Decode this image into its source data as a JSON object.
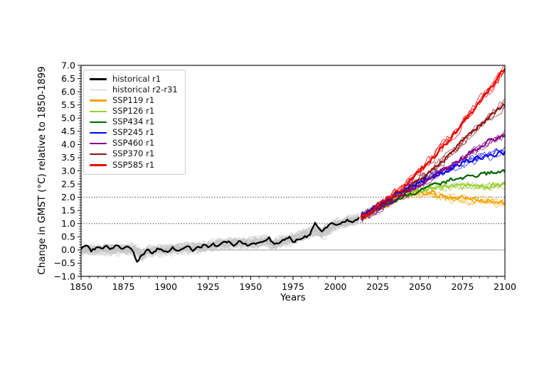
{
  "chart_data": {
    "type": "line",
    "title": "",
    "xlabel": "Years",
    "ylabel": "Change in GMST (°C) relative to 1850-1899",
    "xlim": [
      1850,
      2100
    ],
    "ylim": [
      -1.0,
      7.0
    ],
    "xticks": [
      1850,
      1875,
      1900,
      1925,
      1950,
      1975,
      2000,
      2025,
      2050,
      2075,
      2100
    ],
    "yticks": [
      7.0,
      6.5,
      6.0,
      5.5,
      5.0,
      4.5,
      4.0,
      3.5,
      3.0,
      2.5,
      2.0,
      1.5,
      1.0,
      0.5,
      0.0,
      -0.5,
      -1.0
    ],
    "x_minor_step": 5,
    "y_minor_step": 0.1,
    "grid": "off",
    "reference_lines": [
      {
        "y": 0.0,
        "style": "solid",
        "color": "#9a9a9a"
      },
      {
        "y": 1.0,
        "style": "dotted",
        "color": "#3a3a3a"
      },
      {
        "y": 2.0,
        "style": "dotted",
        "color": "#3a3a3a"
      }
    ],
    "legend": {
      "position": "upper left",
      "items": [
        {
          "label": "historical r1",
          "color": "#000000",
          "lw": 3
        },
        {
          "label": "historical r2-r31",
          "color": "#c9c9c9",
          "lw": 1
        },
        {
          "label": "SSP119 r1",
          "color": "#f5a300",
          "lw": 2.5
        },
        {
          "label": "SSP126 r1",
          "color": "#9acd32",
          "lw": 2.5
        },
        {
          "label": "SSP434 r1",
          "color": "#006400",
          "lw": 2.5
        },
        {
          "label": "SSP245 r1",
          "color": "#0000ee",
          "lw": 2.5
        },
        {
          "label": "SSP460 r1",
          "color": "#800080",
          "lw": 2.5
        },
        {
          "label": "SSP370 r1",
          "color": "#8b1212",
          "lw": 2.5
        },
        {
          "label": "SSP585 r1",
          "color": "#ee0000",
          "lw": 2.5
        }
      ]
    },
    "series": [
      {
        "name": "historical r2-r31",
        "slug": "historical-ensemble",
        "color": "#c4c4c4",
        "width": 0.7,
        "members": 30,
        "member_noise": 0.13,
        "member_spread": 0.24,
        "main": false,
        "noise": 0,
        "anchors": [
          [
            1850,
            0.0
          ],
          [
            1880,
            0.02
          ],
          [
            1883,
            -0.05
          ],
          [
            1886,
            -0.22
          ],
          [
            1890,
            -0.05
          ],
          [
            1900,
            0.0
          ],
          [
            1910,
            0.05
          ],
          [
            1920,
            0.1
          ],
          [
            1930,
            0.2
          ],
          [
            1940,
            0.28
          ],
          [
            1950,
            0.25
          ],
          [
            1960,
            0.33
          ],
          [
            1963,
            0.2
          ],
          [
            1970,
            0.35
          ],
          [
            1980,
            0.5
          ],
          [
            1988,
            0.75
          ],
          [
            1992,
            0.62
          ],
          [
            2000,
            0.95
          ],
          [
            2007,
            1.05
          ],
          [
            2014,
            1.2
          ]
        ]
      },
      {
        "name": "historical r1",
        "slug": "historical-r1",
        "color": "#000000",
        "width": 2.3,
        "members": 0,
        "member_noise": 0,
        "member_spread": 0,
        "main": true,
        "noise": 0.05,
        "anchors": [
          [
            1850,
            0.05
          ],
          [
            1853,
            0.18
          ],
          [
            1856,
            -0.05
          ],
          [
            1859,
            0.1
          ],
          [
            1862,
            0.0
          ],
          [
            1865,
            0.12
          ],
          [
            1868,
            0.02
          ],
          [
            1871,
            0.15
          ],
          [
            1874,
            0.05
          ],
          [
            1877,
            0.12
          ],
          [
            1880,
            0.0
          ],
          [
            1883,
            -0.42
          ],
          [
            1886,
            -0.18
          ],
          [
            1889,
            -0.02
          ],
          [
            1892,
            -0.12
          ],
          [
            1895,
            0.05
          ],
          [
            1898,
            0.02
          ],
          [
            1901,
            -0.05
          ],
          [
            1904,
            0.08
          ],
          [
            1907,
            -0.02
          ],
          [
            1910,
            0.05
          ],
          [
            1913,
            0.12
          ],
          [
            1916,
            0.0
          ],
          [
            1919,
            0.1
          ],
          [
            1922,
            0.18
          ],
          [
            1925,
            0.1
          ],
          [
            1928,
            0.22
          ],
          [
            1931,
            0.12
          ],
          [
            1934,
            0.25
          ],
          [
            1937,
            0.3
          ],
          [
            1940,
            0.2
          ],
          [
            1943,
            0.3
          ],
          [
            1946,
            0.22
          ],
          [
            1949,
            0.18
          ],
          [
            1952,
            0.3
          ],
          [
            1955,
            0.25
          ],
          [
            1958,
            0.38
          ],
          [
            1961,
            0.45
          ],
          [
            1964,
            0.18
          ],
          [
            1967,
            0.3
          ],
          [
            1970,
            0.38
          ],
          [
            1973,
            0.45
          ],
          [
            1976,
            0.3
          ],
          [
            1979,
            0.45
          ],
          [
            1982,
            0.5
          ],
          [
            1985,
            0.55
          ],
          [
            1988,
            1.05
          ],
          [
            1990,
            0.9
          ],
          [
            1992,
            0.7
          ],
          [
            1995,
            0.85
          ],
          [
            1998,
            1.0
          ],
          [
            2001,
            0.95
          ],
          [
            2004,
            1.05
          ],
          [
            2007,
            1.15
          ],
          [
            2010,
            1.05
          ],
          [
            2014,
            1.25
          ]
        ]
      },
      {
        "name": "SSP119 r1",
        "slug": "ssp119",
        "color": "#f5a300",
        "width": 2.0,
        "members": 4,
        "member_noise": 0.12,
        "member_spread": 0.18,
        "main": true,
        "noise": 0.09,
        "anchors": [
          [
            2015,
            1.25
          ],
          [
            2020,
            1.4
          ],
          [
            2025,
            1.6
          ],
          [
            2030,
            1.8
          ],
          [
            2035,
            1.95
          ],
          [
            2040,
            2.05
          ],
          [
            2045,
            2.15
          ],
          [
            2050,
            2.2
          ],
          [
            2055,
            2.15
          ],
          [
            2060,
            2.1
          ],
          [
            2065,
            2.05
          ],
          [
            2070,
            2.0
          ],
          [
            2075,
            1.95
          ],
          [
            2080,
            1.9
          ],
          [
            2085,
            1.9
          ],
          [
            2090,
            1.9
          ],
          [
            2095,
            1.85
          ],
          [
            2100,
            1.85
          ]
        ]
      },
      {
        "name": "SSP126 r1",
        "slug": "ssp126",
        "color": "#9acd32",
        "width": 2.0,
        "members": 4,
        "member_noise": 0.12,
        "member_spread": 0.16,
        "main": true,
        "noise": 0.09,
        "anchors": [
          [
            2015,
            1.25
          ],
          [
            2020,
            1.45
          ],
          [
            2025,
            1.6
          ],
          [
            2030,
            1.8
          ],
          [
            2035,
            2.0
          ],
          [
            2040,
            2.1
          ],
          [
            2045,
            2.2
          ],
          [
            2050,
            2.3
          ],
          [
            2055,
            2.35
          ],
          [
            2060,
            2.4
          ],
          [
            2065,
            2.4
          ],
          [
            2070,
            2.45
          ],
          [
            2075,
            2.4
          ],
          [
            2080,
            2.45
          ],
          [
            2085,
            2.4
          ],
          [
            2090,
            2.45
          ],
          [
            2095,
            2.45
          ],
          [
            2100,
            2.5
          ]
        ]
      },
      {
        "name": "SSP434 r1",
        "slug": "ssp434",
        "color": "#006400",
        "width": 2.2,
        "members": 0,
        "member_noise": 0,
        "member_spread": 0,
        "main": true,
        "noise": 0.08,
        "anchors": [
          [
            2015,
            1.25
          ],
          [
            2020,
            1.4
          ],
          [
            2025,
            1.55
          ],
          [
            2030,
            1.7
          ],
          [
            2035,
            1.9
          ],
          [
            2040,
            2.05
          ],
          [
            2045,
            2.15
          ],
          [
            2050,
            2.3
          ],
          [
            2055,
            2.4
          ],
          [
            2060,
            2.5
          ],
          [
            2065,
            2.6
          ],
          [
            2070,
            2.7
          ],
          [
            2075,
            2.75
          ],
          [
            2080,
            2.8
          ],
          [
            2085,
            2.85
          ],
          [
            2090,
            2.9
          ],
          [
            2095,
            2.95
          ],
          [
            2100,
            3.0
          ]
        ]
      },
      {
        "name": "SSP245 r1",
        "slug": "ssp245",
        "color": "#0000ee",
        "width": 2.0,
        "members": 4,
        "member_noise": 0.12,
        "member_spread": 0.2,
        "main": true,
        "noise": 0.09,
        "anchors": [
          [
            2015,
            1.25
          ],
          [
            2020,
            1.45
          ],
          [
            2025,
            1.65
          ],
          [
            2030,
            1.85
          ],
          [
            2035,
            2.05
          ],
          [
            2040,
            2.25
          ],
          [
            2045,
            2.45
          ],
          [
            2050,
            2.6
          ],
          [
            2055,
            2.75
          ],
          [
            2060,
            2.9
          ],
          [
            2065,
            3.0
          ],
          [
            2070,
            3.15
          ],
          [
            2075,
            3.3
          ],
          [
            2080,
            3.4
          ],
          [
            2085,
            3.5
          ],
          [
            2090,
            3.6
          ],
          [
            2095,
            3.65
          ],
          [
            2100,
            3.7
          ]
        ]
      },
      {
        "name": "SSP460 r1",
        "slug": "ssp460",
        "color": "#800080",
        "width": 2.0,
        "members": 4,
        "member_noise": 0.12,
        "member_spread": 0.18,
        "main": true,
        "noise": 0.09,
        "anchors": [
          [
            2015,
            1.25
          ],
          [
            2020,
            1.4
          ],
          [
            2025,
            1.55
          ],
          [
            2030,
            1.75
          ],
          [
            2035,
            1.95
          ],
          [
            2040,
            2.1
          ],
          [
            2045,
            2.3
          ],
          [
            2050,
            2.5
          ],
          [
            2055,
            2.7
          ],
          [
            2060,
            2.9
          ],
          [
            2065,
            3.1
          ],
          [
            2070,
            3.3
          ],
          [
            2075,
            3.5
          ],
          [
            2080,
            3.7
          ],
          [
            2085,
            3.9
          ],
          [
            2090,
            4.1
          ],
          [
            2095,
            4.25
          ],
          [
            2100,
            4.4
          ]
        ]
      },
      {
        "name": "SSP370 r1",
        "slug": "ssp370",
        "color": "#8b1212",
        "width": 2.0,
        "members": 4,
        "member_noise": 0.13,
        "member_spread": 0.22,
        "main": true,
        "noise": 0.09,
        "anchors": [
          [
            2015,
            1.25
          ],
          [
            2020,
            1.4
          ],
          [
            2025,
            1.6
          ],
          [
            2030,
            1.8
          ],
          [
            2035,
            2.0
          ],
          [
            2040,
            2.2
          ],
          [
            2045,
            2.45
          ],
          [
            2050,
            2.7
          ],
          [
            2055,
            2.95
          ],
          [
            2060,
            3.2
          ],
          [
            2065,
            3.5
          ],
          [
            2070,
            3.8
          ],
          [
            2075,
            4.1
          ],
          [
            2080,
            4.4
          ],
          [
            2085,
            4.7
          ],
          [
            2090,
            5.0
          ],
          [
            2095,
            5.3
          ],
          [
            2100,
            5.55
          ]
        ]
      },
      {
        "name": "SSP585 r1",
        "slug": "ssp585",
        "color": "#ee0000",
        "width": 2.2,
        "members": 4,
        "member_noise": 0.13,
        "member_spread": 0.2,
        "main": true,
        "noise": 0.09,
        "anchors": [
          [
            2015,
            1.25
          ],
          [
            2020,
            1.45
          ],
          [
            2025,
            1.65
          ],
          [
            2030,
            1.9
          ],
          [
            2035,
            2.15
          ],
          [
            2040,
            2.4
          ],
          [
            2045,
            2.7
          ],
          [
            2050,
            3.0
          ],
          [
            2055,
            3.35
          ],
          [
            2060,
            3.7
          ],
          [
            2065,
            4.05
          ],
          [
            2070,
            4.4
          ],
          [
            2075,
            4.8
          ],
          [
            2080,
            5.2
          ],
          [
            2085,
            5.6
          ],
          [
            2090,
            6.0
          ],
          [
            2095,
            6.4
          ],
          [
            2100,
            6.85
          ]
        ]
      }
    ]
  }
}
